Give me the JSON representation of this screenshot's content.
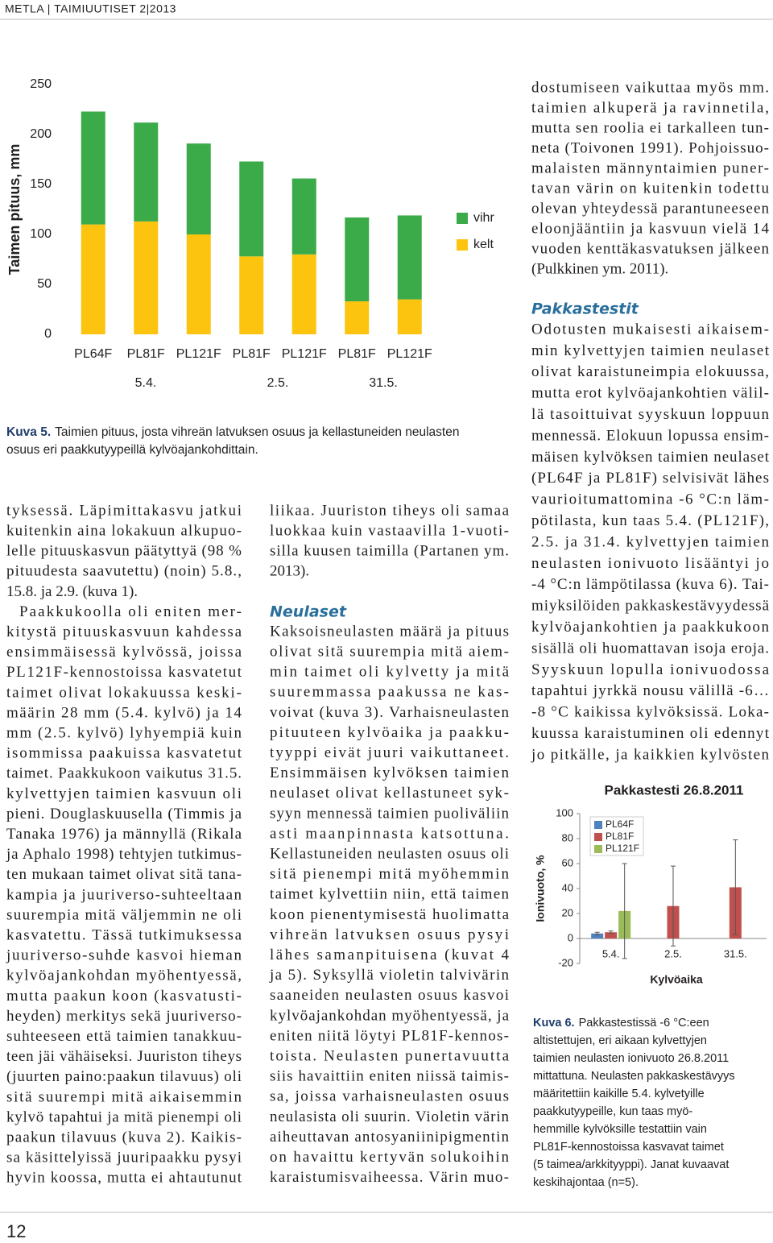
{
  "header": "METLA | TAIMIUUTISET 2|2013",
  "page_number": "12",
  "chart_data": [
    {
      "type": "bar",
      "stacked": true,
      "ylabel": "Taimen pituus, mm",
      "categories": [
        "PL64F",
        "PL81F",
        "PL121F",
        "PL81F",
        "PL121F",
        "PL81F",
        "PL121F"
      ],
      "groups": [
        "5.4.",
        "2.5.",
        "31.5."
      ],
      "series": [
        {
          "name": "kelt",
          "color": "#fcc30f",
          "values": [
            110,
            113,
            100,
            78,
            80,
            33,
            35
          ]
        },
        {
          "name": "vihr",
          "color": "#3bab49",
          "values": [
            113,
            99,
            91,
            95,
            76,
            84,
            84
          ]
        }
      ],
      "ylim": [
        0,
        250
      ],
      "yticks": [
        0,
        50,
        100,
        150,
        200,
        250
      ]
    },
    {
      "type": "bar",
      "title": "Pakkastesti 26.8.2011",
      "xlabel": "Kylvöaika",
      "ylabel": "Ionivuoto, %",
      "categories": [
        "5.4.",
        "2.5.",
        "31.5."
      ],
      "series": [
        {
          "name": "PL64F",
          "color": "#4f81bd",
          "values": [
            4,
            null,
            null
          ],
          "errors": [
            1,
            null,
            null
          ]
        },
        {
          "name": "PL81F",
          "color": "#c0504d",
          "values": [
            5,
            26,
            41
          ],
          "errors": [
            1,
            32,
            38
          ]
        },
        {
          "name": "PL121F",
          "color": "#9bbb59",
          "values": [
            22,
            null,
            null
          ],
          "errors": [
            38,
            null,
            null
          ]
        }
      ],
      "ylim": [
        -20,
        100
      ],
      "yticks": [
        -20,
        0,
        20,
        40,
        60,
        80,
        100
      ]
    }
  ],
  "captions": [
    {
      "label": "Kuva 5.",
      "lines": [
        "Taimien pituus, josta vihreän latvuksen osuus ja kellastuneiden neulasten",
        "osuus eri paakkutyypeillä kylvöajankohdittain."
      ]
    },
    {
      "label": "Kuva 6.",
      "lines": [
        "Pakkastestissä -6 °C:een",
        "altistettujen, eri aikaan kylvettyjen",
        "taimien neulasten ionivuoto 26.8.2011",
        "mittattuna. Neulasten pakkaskestävyys",
        "määritettiin kaikille 5.4. kylvetyille",
        "paakkutyypeille, kun taas myö-",
        "hemmille kylvöksille testattiin vain",
        "PL81F-kennostoissa kasvavat taimet",
        "(5 taimea/arkkityyppi). Janat kuvaavat",
        "keskihajontaa (n=5)."
      ]
    }
  ],
  "columns": [
    {
      "blocks": [
        {
          "lines": [
            "tyksessä. Läpimittakasvu jatkui",
            "kuitenkin aina lokakuun alkupuo-",
            "lelle pituuskasvun päätyttyä (98 %",
            "pituudesta saavutettu) (noin) 5.8.,",
            "15.8. ja 2.9. (kuva 1)."
          ]
        },
        {
          "lines": [
            "Paakkukoolla oli eniten mer-",
            "kitystä pituuskasvuun kahdessa",
            "ensimmäisessä kylvössä, joissa",
            "PL121F-kennostoissa kasvatetut",
            "taimet olivat lokakuussa keski-",
            "määrin 28 mm (5.4. kylvö) ja 14",
            "mm (2.5. kylvö) lyhyempiä kuin",
            "isommissa paakuissa kasvatetut",
            "taimet. Paakkukoon vaikutus 31.5.",
            "kylvettyjen taimien kasvuun oli",
            "pieni. Douglaskuusella (Timmis ja",
            "Tanaka 1976) ja männyllä (Rikala",
            "ja Aphalo 1998) tehtyjen tutkimus-",
            "ten mukaan taimet olivat sitä tana-",
            "kampia ja juuriverso-suhteeltaan",
            "suurempia mitä väljemmin ne oli",
            "kasvatettu. Tässä tutkimuksessa",
            "juuriverso-suhde kasvoi hieman",
            "kylvöajankohdan myöhentyessä,",
            "mutta paakun koon (kasvatusti-",
            "heyden) merkitys sekä juuriverso-",
            "suhteeseen että taimien tanakkuu-",
            "teen jäi vähäiseksi. Juuriston tiheys",
            "(juurten paino:paakun tilavuus) oli",
            "sitä suurempi mitä aikaisemmin",
            "kylvö tapahtui ja mitä pienempi oli",
            "paakun tilavuus (kuva 2). Kaikis-",
            "sa käsittelyissä juuripaakku pysyi",
            "hyvin koossa, mutta ei ahtautunut"
          ]
        }
      ]
    },
    {
      "blocks": [
        {
          "lines": [
            "liikaa. Juuriston tiheys oli samaa",
            "luokkaa kuin vastaavilla 1-vuoti-",
            "silla kuusen taimilla (Partanen ym.",
            "2013)."
          ]
        },
        {
          "heading": "Neulaset"
        },
        {
          "lines": [
            "Kaksoisneulasten määrä ja pituus",
            "olivat sitä suurempia mitä aiem-",
            "min taimet oli kylvetty ja mitä",
            "suuremmassa paakussa ne kas-",
            "voivat (kuva 3). Varhaisneulasten",
            "pituuteen kylvöaika ja paakku-",
            "tyyppi eivät juuri vaikuttaneet.",
            "Ensimmäisen kylvöksen taimien",
            "neulaset olivat kellastuneet syk-",
            "syyn mennessä taimien puoliväliin",
            "asti maanpinnasta katsottuna.",
            "Kellastuneiden neulasten osuus oli",
            "sitä pienempi mitä myöhemmin",
            "taimet kylvettiin niin, että taimen",
            "koon pienentymisestä huolimatta",
            "vihreän latvuksen osuus pysyi",
            "lähes samanpituisena (kuvat 4",
            "ja 5). Syksyllä violetin talvivärin",
            "saaneiden neulasten osuus kasvoi",
            "kylvöajankohdan myöhentyessä, ja",
            "eniten niitä löytyi PL81F-kennos-",
            "toista. Neulasten punertavuutta",
            "siis havaittiin eniten niissä taimis-",
            "sa, joissa varhaisneulasten osuus",
            "neulasista oli suurin. Violetin värin",
            "aiheuttavan antosyaniinipigmentin",
            "on havaittu kertyvän solukoihin",
            "karaistumisvaiheessa. Värin muo-"
          ]
        }
      ]
    },
    {
      "blocks": [
        {
          "lines": [
            "dostumiseen vaikuttaa myös mm.",
            "taimien alkuperä ja ravinnetila,",
            "mutta sen roolia ei tarkalleen tun-",
            "neta (Toivonen 1991). Pohjoissuo-",
            "malaisten männyntaimien puner-",
            "tavan värin on kuitenkin todettu",
            "olevan yhteydessä parantuneeseen",
            "eloonjääntiin ja kasvuun vielä 14",
            "vuoden kenttäkasvatuksen jälkeen",
            "(Pulkkinen ym. 2011)."
          ]
        },
        {
          "heading": "Pakkastestit"
        },
        {
          "lines": [
            "Odotusten mukaisesti aikaisem-",
            "min kylvettyjen taimien neulaset",
            "olivat karaistuneimpia elokuussa,",
            "mutta erot kylvöajankohtien välil-",
            "lä tasoittuivat syyskuun loppuun",
            "mennessä. Elokuun lopussa ensim-",
            "mäisen kylvöksen taimien neulaset",
            "(PL64F ja PL81F) selvisivät lähes",
            "vaurioitumattomina -6 °C:n läm-",
            "pötilasta, kun taas 5.4. (PL121F),",
            "2.5. ja 31.4. kylvettyjen taimien",
            "neulasten ionivuoto lisääntyi jo",
            "-4 °C:n lämpötilassa (kuva 6). Tai-",
            "miyksilöiden pakkaskestävyydessä",
            "kylvöajankohtien ja paakkukoon",
            "sisällä oli huomattavan isoja eroja.",
            "Syyskuun lopulla ionivuodossa",
            "tapahtui jyrkkä nousu välillä -6…",
            "-8 °C kaikissa kylvöksissä. Loka-",
            "kuussa karaistuminen oli edennyt",
            "jo pitkälle, ja kaikkien kylvösten"
          ]
        }
      ]
    }
  ]
}
